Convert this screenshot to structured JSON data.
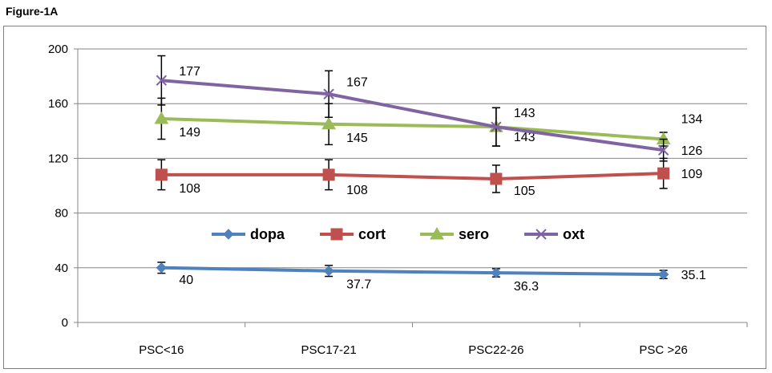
{
  "figure_title": "Figure-1A",
  "chart_data": {
    "type": "line",
    "categories": [
      "PSC<16",
      "PSC17-21",
      "PSC22-26",
      "PSC >26"
    ],
    "ylim": [
      0,
      200
    ],
    "yticks": [
      "0",
      "40",
      "80",
      "120",
      "160",
      "200"
    ],
    "grid": "horizontal",
    "legend_placement": "center",
    "series": [
      {
        "name": "dopa",
        "color": "#4f81bd",
        "marker": "diamond",
        "values": [
          40,
          37.7,
          36.3,
          35.1
        ],
        "labels": [
          "40",
          "37.7",
          "36.3",
          "35.1"
        ],
        "error": [
          4,
          4,
          3,
          3
        ]
      },
      {
        "name": "cort",
        "color": "#c0504d",
        "marker": "square",
        "values": [
          108,
          108,
          105,
          109
        ],
        "labels": [
          "108",
          "108",
          "105",
          "109"
        ],
        "error": [
          11,
          11,
          10,
          11
        ]
      },
      {
        "name": "sero",
        "color": "#9bbb59",
        "marker": "triangle",
        "values": [
          149,
          145,
          143,
          134
        ],
        "labels": [
          "149",
          "145",
          "143",
          "134"
        ],
        "error": [
          15,
          15,
          14,
          5
        ]
      },
      {
        "name": "oxt",
        "color": "#8064a2",
        "marker": "x",
        "values": [
          177,
          167,
          143,
          126
        ],
        "labels": [
          "177",
          "167",
          "143",
          "126"
        ],
        "error": [
          18,
          17,
          14,
          8
        ]
      }
    ]
  }
}
